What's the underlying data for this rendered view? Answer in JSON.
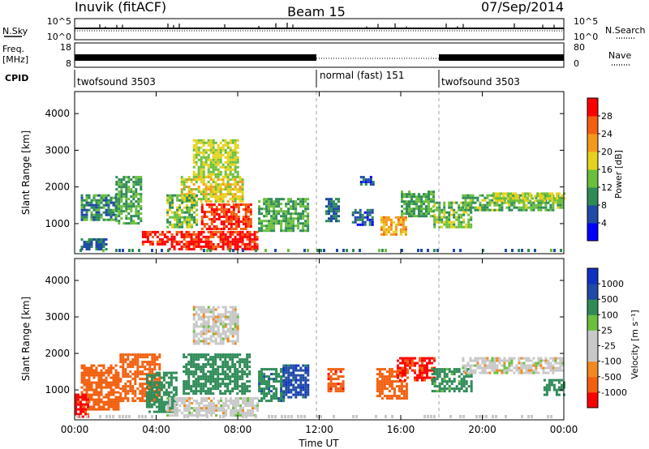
{
  "header": {
    "station": "Inuvik (fitACF)",
    "beam": "Beam 15",
    "date": "07/Sep/2014"
  },
  "noise_panel": {
    "left_label": "N.Sky",
    "left_ticks": [
      "10^5",
      "10^0"
    ],
    "right_label": "N.Search",
    "right_ticks": [
      "10^5",
      "10^0"
    ]
  },
  "freq_panel": {
    "left_label_1": "Freq.",
    "left_label_2": "[MHz]",
    "left_ticks": [
      "18",
      "8"
    ],
    "right_label": "Nave",
    "right_ticks": [
      "80",
      "0"
    ]
  },
  "cpid_panel": {
    "label": "CPID",
    "segments": [
      {
        "name": "twofsound 3503",
        "start_h": 0,
        "end_h": 12
      },
      {
        "name": "normal (fast) 151",
        "start_h": 12,
        "end_h": 18
      },
      {
        "name": "twofsound 3503",
        "start_h": 18,
        "end_h": 24
      }
    ]
  },
  "axes": {
    "xlabel": "Time UT",
    "ylabel": "Slant Range [km]",
    "x_ticks": [
      "00:00",
      "04:00",
      "08:00",
      "12:00",
      "16:00",
      "20:00",
      "00:00"
    ],
    "x_tick_hours": [
      0,
      4,
      8,
      12,
      16,
      20,
      24
    ],
    "y_ticks": [
      "1000",
      "2000",
      "3000",
      "4000"
    ],
    "y_tick_values": [
      1000,
      2000,
      3000,
      4000
    ]
  },
  "colors": {
    "power": [
      "#0000ff",
      "#1f4aa5",
      "#2e8b57",
      "#6bbf3c",
      "#e5d21c",
      "#f49a1a",
      "#f2600f",
      "#ff0000"
    ],
    "velocity": [
      "#ff0000",
      "#f2600f",
      "#f08a1e",
      "#c8c8c8",
      "#c8c8c8",
      "#6bbf3c",
      "#2e8b57",
      "#1f4aa5",
      "#1030c0"
    ]
  },
  "chart_data": [
    {
      "type": "heatmap",
      "name": "power-panel",
      "x_unit": "hours UT",
      "xlim": [
        0,
        24
      ],
      "ylim": [
        180,
        4600
      ],
      "colorbar": {
        "label": "Power [dB]",
        "tick_labels": [
          "4",
          "8",
          "12",
          "16",
          "20",
          "24",
          "28"
        ],
        "range": [
          0,
          32
        ]
      },
      "regions": [
        {
          "t0": 0.3,
          "t1": 2.0,
          "r0": 1100,
          "r1": 1800,
          "v": 10
        },
        {
          "t0": 0.3,
          "t1": 1.5,
          "r0": 300,
          "r1": 600,
          "v": 8
        },
        {
          "t0": 2.0,
          "t1": 3.2,
          "r0": 1000,
          "r1": 2300,
          "v": 12
        },
        {
          "t0": 3.3,
          "t1": 4.6,
          "r0": 450,
          "r1": 800,
          "v": 30
        },
        {
          "t0": 4.6,
          "t1": 9.0,
          "r0": 300,
          "r1": 800,
          "v": 30
        },
        {
          "t0": 6.2,
          "t1": 8.7,
          "r0": 850,
          "r1": 1550,
          "v": 28
        },
        {
          "t0": 5.2,
          "t1": 8.2,
          "r0": 1600,
          "r1": 2300,
          "v": 18
        },
        {
          "t0": 5.8,
          "t1": 8.0,
          "r0": 2300,
          "r1": 3300,
          "v": 16
        },
        {
          "t0": 4.5,
          "t1": 6.0,
          "r0": 900,
          "r1": 1800,
          "v": 14
        },
        {
          "t0": 9.0,
          "t1": 11.4,
          "r0": 800,
          "r1": 1700,
          "v": 12
        },
        {
          "t0": 12.3,
          "t1": 13.0,
          "r0": 1100,
          "r1": 1700,
          "v": 8
        },
        {
          "t0": 13.6,
          "t1": 14.6,
          "r0": 1000,
          "r1": 1400,
          "v": 6
        },
        {
          "t0": 14.0,
          "t1": 14.7,
          "r0": 2100,
          "r1": 2300,
          "v": 6
        },
        {
          "t0": 15.0,
          "t1": 16.2,
          "r0": 700,
          "r1": 1200,
          "v": 22
        },
        {
          "t0": 16.0,
          "t1": 17.6,
          "r0": 1200,
          "r1": 1900,
          "v": 12
        },
        {
          "t0": 17.6,
          "t1": 19.5,
          "r0": 900,
          "r1": 1600,
          "v": 14
        },
        {
          "t0": 19.0,
          "t1": 24.0,
          "r0": 1400,
          "r1": 1800,
          "v": 13
        },
        {
          "t0": 20.5,
          "t1": 24.0,
          "r0": 1650,
          "r1": 1850,
          "v": 16
        }
      ]
    },
    {
      "type": "heatmap",
      "name": "velocity-panel",
      "x_unit": "hours UT",
      "xlim": [
        0,
        24
      ],
      "ylim": [
        180,
        4600
      ],
      "colorbar": {
        "label": "Velocity [m s⁻¹]",
        "tick_labels": [
          "1000",
          "500",
          "100",
          "25",
          "-25",
          "-100",
          "-500",
          "-1000"
        ]
      },
      "regions": [
        {
          "t0": 0.3,
          "t1": 2.2,
          "r0": 500,
          "r1": 1700,
          "v": -300
        },
        {
          "t0": 0.0,
          "t1": 0.6,
          "r0": 300,
          "r1": 900,
          "v": -800
        },
        {
          "t0": 2.2,
          "t1": 4.2,
          "r0": 700,
          "r1": 2000,
          "v": -200
        },
        {
          "t0": 3.5,
          "t1": 5.0,
          "r0": 400,
          "r1": 1500,
          "v": 300
        },
        {
          "t0": 4.5,
          "t1": 9.0,
          "r0": 300,
          "r1": 800,
          "v": 0
        },
        {
          "t0": 5.3,
          "t1": 8.6,
          "r0": 900,
          "r1": 2000,
          "v": 200
        },
        {
          "t0": 5.8,
          "t1": 8.0,
          "r0": 2300,
          "r1": 3300,
          "v": 0
        },
        {
          "t0": 9.0,
          "t1": 10.2,
          "r0": 700,
          "r1": 1600,
          "v": 400
        },
        {
          "t0": 10.2,
          "t1": 11.4,
          "r0": 800,
          "r1": 1700,
          "v": 800
        },
        {
          "t0": 12.4,
          "t1": 13.2,
          "r0": 1000,
          "r1": 1600,
          "v": -400
        },
        {
          "t0": 14.8,
          "t1": 16.3,
          "r0": 800,
          "r1": 1600,
          "v": -300
        },
        {
          "t0": 15.8,
          "t1": 17.7,
          "r0": 1300,
          "r1": 1900,
          "v": -600
        },
        {
          "t0": 17.5,
          "t1": 19.5,
          "r0": 1000,
          "r1": 1600,
          "v": 150
        },
        {
          "t0": 19.0,
          "t1": 24.0,
          "r0": 1500,
          "r1": 1900,
          "v": 0
        },
        {
          "t0": 23.0,
          "t1": 24.0,
          "r0": 900,
          "r1": 1300,
          "v": 300
        }
      ]
    }
  ]
}
